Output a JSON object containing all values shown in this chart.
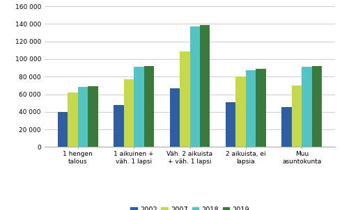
{
  "categories": [
    "1 hengen\ntalous",
    "1 aikuinen +\nväh. 1 lapsi",
    "Väh. 2 aikuista\n+ väh. 1 lapsi",
    "2 aikuista, ei\nlapsia",
    "Muu\nasuntokunta"
  ],
  "series": {
    "2002": [
      40000,
      48000,
      67000,
      51000,
      45000
    ],
    "2007": [
      62000,
      77000,
      109000,
      80000,
      70000
    ],
    "2018": [
      68000,
      91000,
      137000,
      87000,
      91000
    ],
    "2019": [
      69000,
      92000,
      139000,
      89000,
      92000
    ]
  },
  "colors": {
    "2002": "#2e5fa3",
    "2007": "#c8d84b",
    "2018": "#52c4c4",
    "2019": "#3a7a3a"
  },
  "ylim": [
    0,
    160000
  ],
  "yticks": [
    0,
    20000,
    40000,
    60000,
    80000,
    100000,
    120000,
    140000,
    160000
  ],
  "ytick_labels": [
    "0",
    "20 000",
    "40 000",
    "60 000",
    "80 000",
    "100 000",
    "120 000",
    "140 000",
    "160 000"
  ],
  "legend_labels": [
    "2002",
    "2007",
    "2018",
    "2019"
  ],
  "background_color": "#ffffff",
  "grid_color": "#cccccc",
  "bar_width": 0.18,
  "figsize": [
    4.91,
    3.02
  ],
  "dpi": 100
}
